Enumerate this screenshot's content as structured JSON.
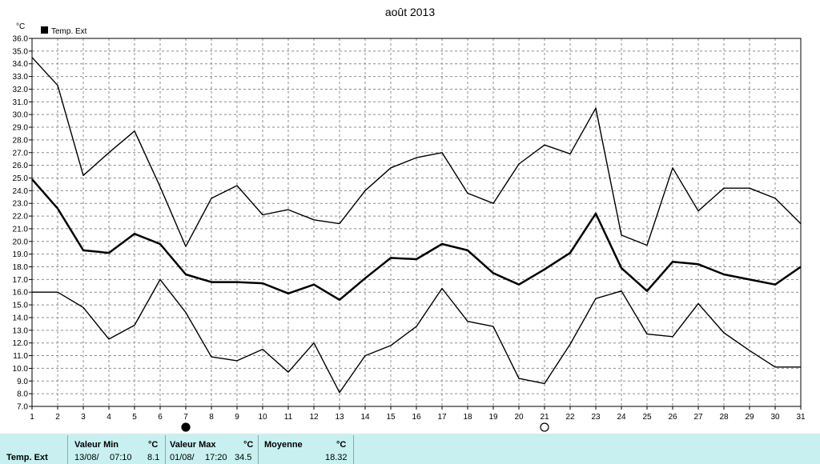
{
  "chart_data": {
    "type": "line",
    "title": "août 2013",
    "ylabel": "°C",
    "legend": "Temp. Ext",
    "legend_position": "top-left",
    "grid": true,
    "ylim": [
      7.0,
      36.0
    ],
    "yticks": [
      "7.0",
      "8.0",
      "9.0",
      "10.0",
      "11.0",
      "12.0",
      "13.0",
      "14.0",
      "15.0",
      "16.0",
      "17.0",
      "18.0",
      "19.0",
      "20.0",
      "21.0",
      "22.0",
      "23.0",
      "24.0",
      "25.0",
      "26.0",
      "27.0",
      "28.0",
      "29.0",
      "30.0",
      "31.0",
      "32.0",
      "33.0",
      "34.0",
      "35.0",
      "36.0"
    ],
    "categories": [
      "1",
      "2",
      "3",
      "4",
      "5",
      "6",
      "7",
      "8",
      "9",
      "10",
      "11",
      "12",
      "13",
      "14",
      "15",
      "16",
      "17",
      "18",
      "19",
      "20",
      "21",
      "22",
      "23",
      "24",
      "25",
      "26",
      "27",
      "28",
      "29",
      "30",
      "31"
    ],
    "series": [
      {
        "role": "max",
        "values": [
          34.5,
          32.3,
          25.2,
          27.0,
          28.7,
          24.3,
          19.6,
          23.4,
          24.4,
          22.1,
          22.5,
          21.7,
          21.4,
          24.0,
          25.8,
          26.6,
          27.0,
          23.8,
          23.0,
          26.1,
          27.6,
          26.9,
          30.5,
          20.5,
          19.7,
          25.8,
          22.4,
          24.2,
          24.2,
          23.4,
          21.4
        ]
      },
      {
        "role": "mean",
        "values": [
          24.9,
          22.6,
          19.3,
          19.1,
          20.6,
          19.8,
          17.4,
          16.8,
          16.8,
          16.7,
          15.9,
          16.6,
          15.4,
          17.1,
          18.7,
          18.6,
          19.8,
          19.3,
          17.5,
          16.6,
          17.8,
          19.1,
          22.2,
          17.9,
          16.1,
          18.4,
          18.2,
          17.4,
          17.0,
          16.6,
          18.0
        ]
      },
      {
        "role": "min",
        "values": [
          16.0,
          16.0,
          14.8,
          12.3,
          13.4,
          17.0,
          14.4,
          10.9,
          10.6,
          11.5,
          9.7,
          12.0,
          8.1,
          11.0,
          11.8,
          13.3,
          16.3,
          13.7,
          13.3,
          9.2,
          8.8,
          11.9,
          15.5,
          16.1,
          12.7,
          12.5,
          15.1,
          12.8,
          11.4,
          10.1,
          10.1
        ]
      }
    ],
    "moon_phases": [
      {
        "day": "7",
        "phase": "new-moon-icon"
      },
      {
        "day": "21",
        "phase": "full-moon-icon"
      }
    ]
  },
  "stats": {
    "row_label": "Temp. Ext",
    "min_header": "Valeur Min",
    "max_header": "Valeur Max",
    "mean_header": "Moyenne",
    "unit": "°C",
    "min_date": "13/08/",
    "min_time": "07:10",
    "min_value": "8.1",
    "max_date": "01/08/",
    "max_time": "17:20",
    "max_value": "34.5",
    "mean_value": "18.32"
  },
  "colors": {
    "line": "#000000",
    "grid": "#8c8c8c",
    "stats_bg": "#c8f0f0"
  }
}
